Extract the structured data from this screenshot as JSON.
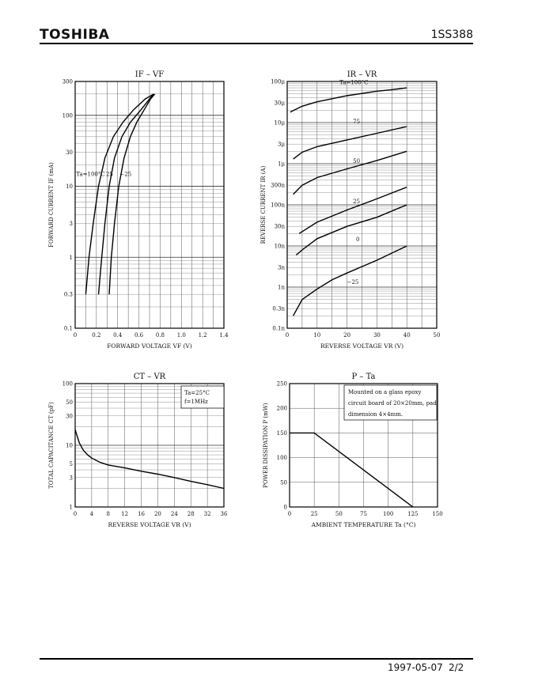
{
  "header": {
    "brand": "TOSHIBA",
    "part_number": "1SS388"
  },
  "footer": {
    "date": "1997-05-07",
    "page": "2/2"
  },
  "chart_data": [
    {
      "type": "line",
      "title": "IF – VF",
      "xlabel": "FORWARD VOLTAGE VF (V)",
      "ylabel": "FORWARD CURRENT IF (mA)",
      "xlim": [
        0,
        1.4
      ],
      "ylim": [
        0.1,
        300
      ],
      "yscale": "log",
      "xticks": [
        "0",
        "0.2",
        "0.4",
        "0.6",
        "0.8",
        "1.0",
        "1.2",
        "1.4"
      ],
      "yticks": [
        "0.1",
        "0.3",
        "1",
        "3",
        "10",
        "30",
        "100",
        "300"
      ],
      "annotations": [
        "Ta=100°C",
        "25",
        "−25"
      ],
      "series": [
        {
          "name": "Ta=100°C",
          "x": [
            0.1,
            0.13,
            0.17,
            0.22,
            0.28,
            0.36,
            0.45,
            0.55,
            0.66,
            0.74
          ],
          "y": [
            0.3,
            1,
            3,
            10,
            25,
            50,
            80,
            120,
            170,
            200
          ]
        },
        {
          "name": "25",
          "x": [
            0.22,
            0.25,
            0.28,
            0.32,
            0.37,
            0.44,
            0.52,
            0.62,
            0.7,
            0.74
          ],
          "y": [
            0.3,
            1,
            3,
            10,
            25,
            50,
            80,
            120,
            170,
            200
          ]
        },
        {
          "name": "−25",
          "x": [
            0.32,
            0.34,
            0.37,
            0.41,
            0.46,
            0.52,
            0.58,
            0.65,
            0.71,
            0.75
          ],
          "y": [
            0.3,
            1,
            3,
            10,
            25,
            50,
            80,
            120,
            170,
            200
          ]
        }
      ]
    },
    {
      "type": "line",
      "title": "IR – VR",
      "xlabel": "REVERSE VOLTAGE VR (V)",
      "ylabel": "REVERSE CURRENT IR (A)",
      "xlim": [
        0,
        50
      ],
      "ylim": [
        1e-10,
        0.0001
      ],
      "yscale": "log",
      "xticks": [
        "0",
        "10",
        "20",
        "30",
        "40",
        "50"
      ],
      "yticks": [
        "100μ",
        "30μ",
        "10μ",
        "3μ",
        "1μ",
        "300n",
        "100n",
        "30n",
        "10n",
        "3n",
        "1n",
        "0.3n",
        "0.1n"
      ],
      "series": [
        {
          "name": "Ta=100°C",
          "x": [
            1,
            5,
            10,
            20,
            30,
            35,
            40
          ],
          "y": [
            1.8e-05,
            2.5e-05,
            3.2e-05,
            4.5e-05,
            5.8e-05,
            6.3e-05,
            7e-05
          ]
        },
        {
          "name": "75",
          "x": [
            2,
            5,
            10,
            20,
            30,
            40
          ],
          "y": [
            1.3e-06,
            1.9e-06,
            2.6e-06,
            3.8e-06,
            5.5e-06,
            8e-06
          ]
        },
        {
          "name": "50",
          "x": [
            2,
            5,
            10,
            20,
            30,
            40
          ],
          "y": [
            1.8e-07,
            3e-07,
            4.6e-07,
            7.5e-07,
            1.2e-06,
            2e-06
          ]
        },
        {
          "name": "25",
          "x": [
            4,
            10,
            20,
            30,
            40
          ],
          "y": [
            2e-08,
            3.8e-08,
            7.5e-08,
            1.4e-07,
            2.7e-07
          ]
        },
        {
          "name": "0",
          "x": [
            3,
            5,
            10,
            20,
            30,
            40
          ],
          "y": [
            6e-09,
            8e-09,
            1.5e-08,
            3e-08,
            5e-08,
            1e-07
          ]
        },
        {
          "name": "−25",
          "x": [
            2,
            5,
            10,
            15,
            20,
            30,
            40
          ],
          "y": [
            2e-10,
            5e-10,
            9e-10,
            1.5e-09,
            2.2e-09,
            4.5e-09,
            1e-08
          ]
        }
      ]
    },
    {
      "type": "line",
      "title": "CT – VR",
      "xlabel": "REVERSE VOLTAGE VR (V)",
      "ylabel": "TOTAL CAPACITANCE CT (pF)",
      "xlim": [
        0,
        36
      ],
      "ylim": [
        1,
        100
      ],
      "yscale": "log",
      "xticks": [
        "0",
        "4",
        "8",
        "12",
        "16",
        "20",
        "24",
        "28",
        "32",
        "36"
      ],
      "yticks": [
        "1",
        "3",
        "5",
        "10",
        "30",
        "50",
        "100"
      ],
      "legend_text": [
        "Ta=25°C",
        "f=1MHz"
      ],
      "series": [
        {
          "name": "",
          "x": [
            0,
            0.5,
            1,
            1.5,
            2,
            3,
            4,
            6,
            8,
            12,
            16,
            20,
            24,
            28,
            32,
            36
          ],
          "y": [
            18,
            14,
            11,
            9.5,
            8.3,
            7,
            6.2,
            5.3,
            4.8,
            4.3,
            3.8,
            3.4,
            3.0,
            2.6,
            2.3,
            2.0
          ]
        }
      ]
    },
    {
      "type": "line",
      "title": "P – Ta",
      "xlabel": "AMBIENT TEMPERATURE Ta (°C)",
      "ylabel": "POWER DISSIPATION P (mW)",
      "xlim": [
        0,
        150
      ],
      "ylim": [
        0,
        250
      ],
      "xticks": [
        "0",
        "25",
        "50",
        "75",
        "100",
        "125",
        "150"
      ],
      "yticks": [
        "0",
        "50",
        "100",
        "150",
        "200",
        "250"
      ],
      "note": [
        "Mounted on a glass epoxy",
        "circuit board of 20×20mm, pad",
        "dimension 4×4mm."
      ],
      "series": [
        {
          "name": "",
          "x": [
            0,
            25,
            125
          ],
          "y": [
            150,
            150,
            0
          ]
        }
      ]
    }
  ]
}
